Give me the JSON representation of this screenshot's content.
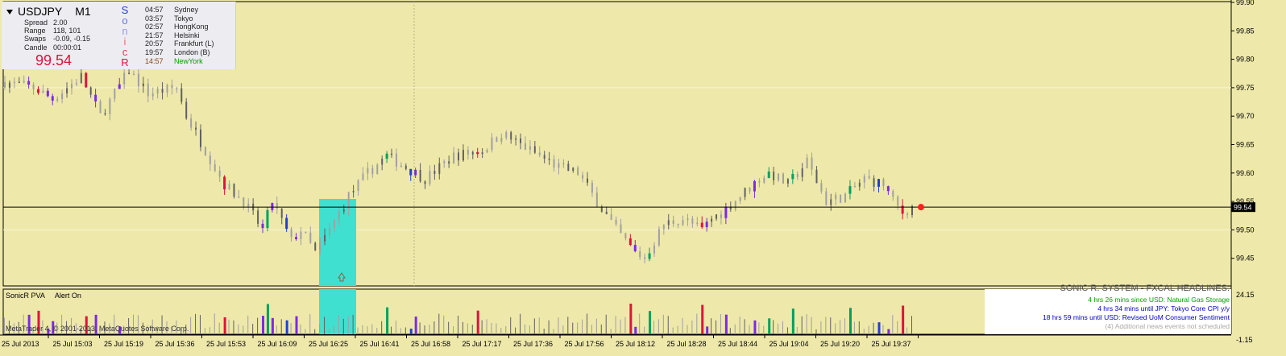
{
  "symbol": "USDJPY",
  "timeframe": "M1",
  "stats": [
    {
      "label": "Spread",
      "value": "2.00"
    },
    {
      "label": "Range",
      "value": "118, 101"
    },
    {
      "label": "Swaps",
      "value": "-0.09, -0.15"
    },
    {
      "label": "Candle",
      "value": "00:00:01"
    }
  ],
  "current_price": "99.54",
  "sonic_letters": [
    "S",
    "o",
    "n",
    "i",
    "c",
    "R"
  ],
  "sessions": [
    {
      "time": "04:57",
      "city": "Sydney"
    },
    {
      "time": "03:57",
      "city": "Tokyo"
    },
    {
      "time": "02:57",
      "city": "HongKong"
    },
    {
      "time": "21:57",
      "city": "Helsinki"
    },
    {
      "time": "20:57",
      "city": "Frankfurt  (L)"
    },
    {
      "time": "19:57",
      "city": "London  (B)"
    },
    {
      "time": "14:57",
      "city": "NewYork"
    }
  ],
  "indicator": {
    "name": "SonicR PVA",
    "alert": "Alert On"
  },
  "watermark": "MetaTrader 4, © 2001-2013, MetaQuotes Software Corp.",
  "news": {
    "header": "SONIC R. SYSTEM - FXCAL HEADLINES:",
    "lines": [
      "4 hrs 26 mins since USD: Natural Gas Storage",
      "4 hrs 34 mins until JPY: Tokyo Core CPI y/y",
      "18 hrs 59 mins until USD: Revised UoM Consumer Sentiment",
      "(4)  Additional news events not scheduled"
    ]
  },
  "price_axis": {
    "ticks": [
      "99.90",
      "99.85",
      "99.80",
      "99.75",
      "99.70",
      "99.65",
      "99.60",
      "99.55",
      "99.50",
      "99.45"
    ],
    "current": "99.54"
  },
  "volume_axis": {
    "max_label": "24.15",
    "min_label": "-1.15"
  },
  "time_axis": [
    "25 Jul 2013",
    "25 Jul 15:03",
    "25 Jul 15:19",
    "25 Jul 15:36",
    "25 Jul 15:53",
    "25 Jul 16:09",
    "25 Jul 16:25",
    "25 Jul 16:41",
    "25 Jul 16:58",
    "25 Jul 17:17",
    "25 Jul 17:36",
    "25 Jul 17:56",
    "25 Jul 18:12",
    "25 Jul 18:28",
    "25 Jul 18:44",
    "25 Jul 19:04",
    "25 Jul 19:20",
    "25 Jul 19:37"
  ],
  "colors": {
    "background": "#EEE8AA",
    "neutral_bar": "#A0A0A0",
    "dark_bar": "#606060",
    "bull_climax": "#00A060",
    "bear_climax": "#DC143C",
    "rising_volume": "#7B2BE2",
    "blue_bar": "#2040D0",
    "highlight": "#40E0D0",
    "current_price_dot": "#FF2020"
  },
  "chart_data": {
    "type": "bar",
    "title": "USDJPY M1",
    "ylim": [
      99.42,
      99.91
    ],
    "current_price": 99.54,
    "close_path": [
      [
        0,
        99.76
      ],
      [
        6,
        99.75
      ],
      [
        10,
        99.73
      ],
      [
        16,
        99.77
      ],
      [
        20,
        99.7
      ],
      [
        26,
        99.78
      ],
      [
        30,
        99.74
      ],
      [
        36,
        99.75
      ],
      [
        38,
        99.7
      ],
      [
        42,
        99.64
      ],
      [
        46,
        99.58
      ],
      [
        50,
        99.55
      ],
      [
        54,
        99.5
      ],
      [
        56,
        99.55
      ],
      [
        60,
        99.48
      ],
      [
        62,
        99.5
      ],
      [
        65,
        99.46
      ],
      [
        68,
        99.5
      ],
      [
        72,
        99.56
      ],
      [
        76,
        99.6
      ],
      [
        80,
        99.63
      ],
      [
        84,
        99.61
      ],
      [
        88,
        99.59
      ],
      [
        94,
        99.63
      ],
      [
        100,
        99.64
      ],
      [
        104,
        99.67
      ],
      [
        108,
        99.65
      ],
      [
        112,
        99.63
      ],
      [
        116,
        99.61
      ],
      [
        120,
        99.6
      ],
      [
        124,
        99.55
      ],
      [
        128,
        99.5
      ],
      [
        132,
        99.46
      ],
      [
        134,
        99.45
      ],
      [
        138,
        99.51
      ],
      [
        142,
        99.52
      ],
      [
        146,
        99.5
      ],
      [
        148,
        99.52
      ],
      [
        150,
        99.53
      ],
      [
        154,
        99.56
      ],
      [
        158,
        99.59
      ],
      [
        160,
        99.6
      ],
      [
        164,
        99.58
      ],
      [
        168,
        99.62
      ],
      [
        172,
        99.55
      ],
      [
        176,
        99.56
      ],
      [
        180,
        99.59
      ],
      [
        184,
        99.58
      ],
      [
        186,
        99.55
      ],
      [
        188,
        99.53
      ],
      [
        190,
        99.54
      ]
    ]
  }
}
